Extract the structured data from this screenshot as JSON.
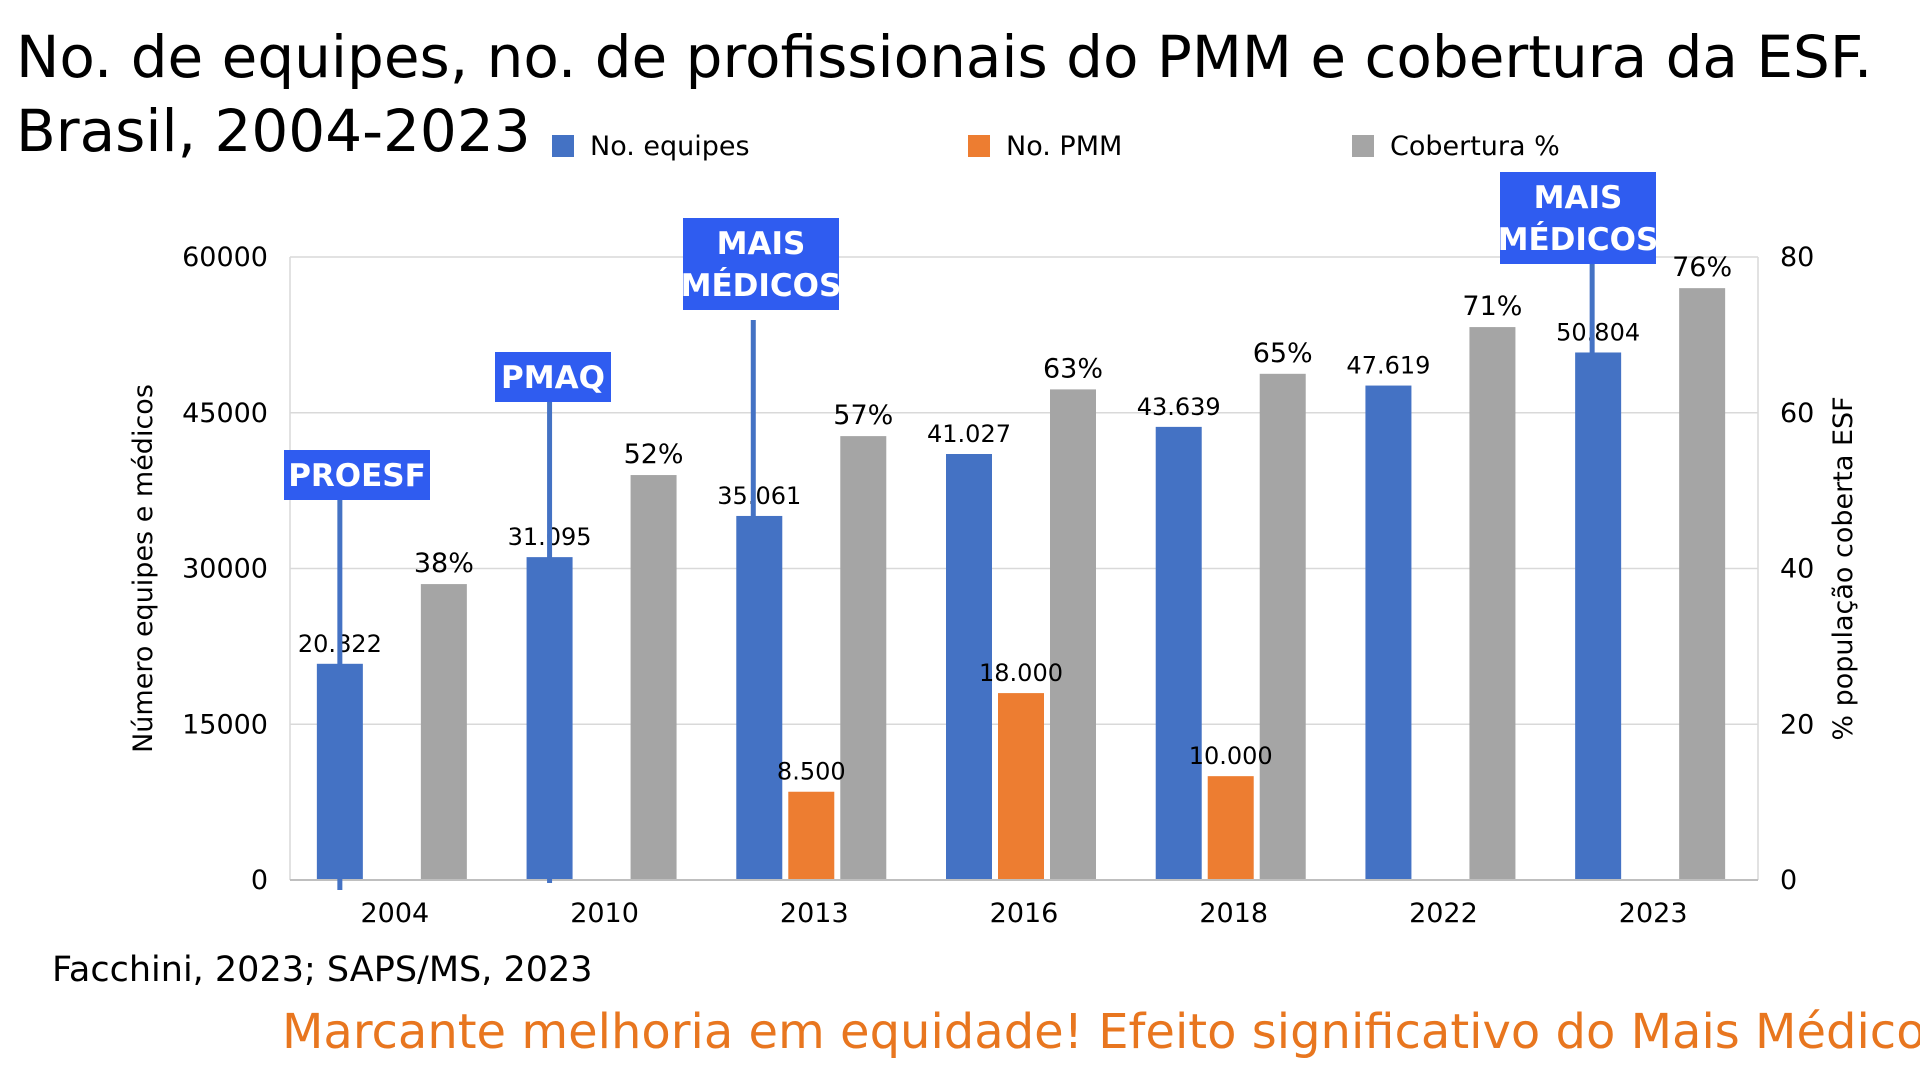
{
  "title": {
    "line1": "No. de equipes, no. de profissionais do PMM e cobertura da ESF.",
    "line2": "Brasil, 2004-2023"
  },
  "source": "Facchini, 2023; SAPS/MS, 2023",
  "conclusion": "Marcante melhoria em equidade! Efeito significativo do Mais Médicos!",
  "colors": {
    "equipes": "#4472C4",
    "pmm": "#ED7D31",
    "cobertura": "#A5A5A5",
    "callout": "#2F5CF0",
    "conclusion": "#E8761F"
  },
  "chart_data": {
    "type": "bar",
    "title": "No. de equipes, no. de profissionais do PMM e cobertura da ESF. Brasil, 2004-2023",
    "categories": [
      "2004",
      "2010",
      "2013",
      "2016",
      "2018",
      "2022",
      "2023"
    ],
    "ylabel_left": "Número equipes e médicos",
    "ylabel_right": "% população coberta ESF",
    "ylim_left": [
      0,
      60000
    ],
    "ylim_right": [
      0,
      80
    ],
    "yticks_left": [
      "0",
      "15000",
      "30000",
      "45000",
      "60000"
    ],
    "yticks_right": [
      "0",
      "20",
      "40",
      "60",
      "80"
    ],
    "grid": true,
    "legend_position": "top",
    "series": [
      {
        "name": "No. equipes",
        "axis": "left",
        "values": [
          20822,
          31095,
          35061,
          41027,
          43639,
          47619,
          50804
        ],
        "labels": [
          "20.822",
          "31.095",
          "35.061",
          "41.027",
          "43.639",
          "47.619",
          "50.804"
        ]
      },
      {
        "name": "No. PMM",
        "axis": "left",
        "values": [
          null,
          null,
          8500,
          18000,
          10000,
          null,
          null
        ],
        "labels": [
          "",
          "",
          "8.500",
          "18.000",
          "10.000",
          "",
          ""
        ]
      },
      {
        "name": "Cobertura %",
        "axis": "right",
        "values": [
          38,
          52,
          57,
          63,
          65,
          71,
          76
        ],
        "labels": [
          "38%",
          "52%",
          "57%",
          "63%",
          "65%",
          "71%",
          "76%"
        ]
      }
    ],
    "annotations": [
      {
        "lines": [
          "PROESF"
        ],
        "category": "2004"
      },
      {
        "lines": [
          "PMAQ"
        ],
        "category": "2010"
      },
      {
        "lines": [
          "MAIS",
          "MÉDICOS"
        ],
        "category": "2013"
      },
      {
        "lines": [
          "MAIS",
          "MÉDICOS"
        ],
        "category": "2023"
      }
    ]
  }
}
